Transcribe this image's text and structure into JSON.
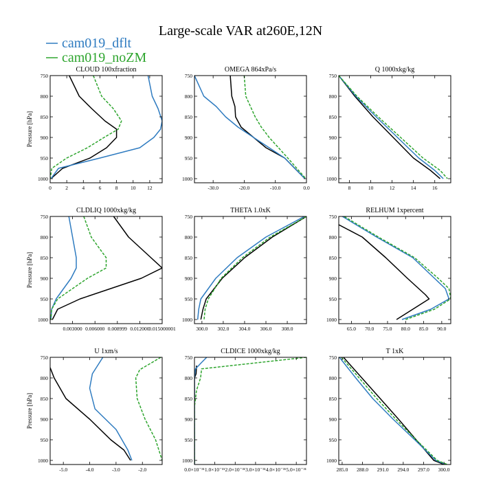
{
  "figure": {
    "title": "Large-scale VAR at260E,12N",
    "legend": [
      {
        "name": "cam019_dflt",
        "color": "#2e7bc0",
        "dash": ""
      },
      {
        "name": "cam019_noZM",
        "color": "#2ea52e",
        "dash": ""
      }
    ]
  },
  "chart_data": [
    {
      "type": "line",
      "title": "CLOUD  100xfraction",
      "ylabel": "Pressure [hPa]",
      "xlim": [
        0,
        13.5
      ],
      "ylim": [
        750,
        1010
      ],
      "y_inverted": true,
      "x_ticks": [
        0,
        2,
        4,
        6,
        8,
        10,
        12
      ],
      "x_tick_labels": [
        "0",
        "2",
        "4",
        "6",
        "8",
        "10",
        "12"
      ],
      "y_ticks": [
        750,
        800,
        850,
        900,
        950,
        1000
      ],
      "y_tick_labels": [
        "750",
        "800",
        "850",
        "900",
        "950",
        "1000"
      ],
      "series": [
        {
          "color": "#000000",
          "dash": "",
          "x": [
            2.3,
            3.5,
            5.0,
            6.6,
            8.0,
            8.0,
            6.8,
            4.8,
            1.5,
            0.1
          ],
          "y": [
            750,
            800,
            830,
            860,
            880,
            900,
            925,
            950,
            975,
            1000
          ]
        },
        {
          "color": "#2e7bc0",
          "dash": "",
          "x": [
            11.8,
            12.3,
            13.0,
            13.5,
            13.3,
            12.5,
            10.8,
            6.0,
            1.0,
            0.1
          ],
          "y": [
            750,
            800,
            830,
            860,
            880,
            900,
            925,
            950,
            975,
            1000
          ]
        },
        {
          "color": "#2ea52e",
          "dash": "4,2",
          "x": [
            5.2,
            6.2,
            7.6,
            8.6,
            8.2,
            6.5,
            4.5,
            2.0,
            0.2,
            0.0
          ],
          "y": [
            750,
            800,
            830,
            860,
            880,
            900,
            925,
            950,
            975,
            1000
          ]
        }
      ]
    },
    {
      "type": "line",
      "title": "OMEGA  864xPa/s",
      "ylabel": "",
      "xlim": [
        -36,
        0
      ],
      "ylim": [
        750,
        1010
      ],
      "y_inverted": true,
      "x_ticks": [
        -30,
        -20,
        -10,
        0
      ],
      "x_tick_labels": [
        "-30.0",
        "-20.0",
        "-10.0",
        "0.0"
      ],
      "y_ticks": [
        750,
        800,
        850,
        900,
        950,
        1000
      ],
      "y_tick_labels": [
        "750",
        "800",
        "850",
        "900",
        "950",
        "1000"
      ],
      "series": [
        {
          "color": "#000000",
          "dash": "",
          "x": [
            -24.5,
            -24,
            -23,
            -22.8,
            -21,
            -17,
            -13,
            -7,
            -0.5
          ],
          "y": [
            750,
            800,
            825,
            850,
            875,
            900,
            925,
            950,
            1000
          ]
        },
        {
          "color": "#2e7bc0",
          "dash": "",
          "x": [
            -36,
            -33,
            -29,
            -26,
            -22,
            -17,
            -12,
            -7,
            -0.5
          ],
          "y": [
            750,
            800,
            825,
            850,
            875,
            900,
            925,
            950,
            1000
          ]
        },
        {
          "color": "#2ea52e",
          "dash": "4,2",
          "x": [
            -20,
            -19.5,
            -18,
            -16.5,
            -14.5,
            -12,
            -9,
            -6,
            -0.2
          ],
          "y": [
            750,
            800,
            825,
            850,
            875,
            900,
            925,
            950,
            1000
          ]
        }
      ]
    },
    {
      "type": "line",
      "title": "Q  1000xkg/kg",
      "ylabel": "",
      "xlim": [
        7,
        17.5
      ],
      "ylim": [
        750,
        1010
      ],
      "y_inverted": true,
      "x_ticks": [
        8,
        10,
        12,
        14,
        16
      ],
      "x_tick_labels": [
        "8",
        "10",
        "12",
        "14",
        "16"
      ],
      "y_ticks": [
        750,
        800,
        850,
        900,
        950,
        1000
      ],
      "y_tick_labels": [
        "750",
        "800",
        "850",
        "900",
        "950",
        "1000"
      ],
      "series": [
        {
          "color": "#000000",
          "dash": "",
          "x": [
            7.0,
            8.5,
            10.2,
            12.1,
            14.0,
            15.6,
            16.5
          ],
          "y": [
            750,
            800,
            850,
            900,
            950,
            980,
            1000
          ]
        },
        {
          "color": "#2e7bc0",
          "dash": "",
          "x": [
            7.0,
            8.6,
            10.5,
            12.5,
            14.5,
            16.0,
            16.8
          ],
          "y": [
            750,
            800,
            850,
            900,
            950,
            980,
            1000
          ]
        },
        {
          "color": "#2ea52e",
          "dash": "4,2",
          "x": [
            7.0,
            8.7,
            10.7,
            12.8,
            14.9,
            16.5,
            17.2
          ],
          "y": [
            750,
            800,
            850,
            900,
            950,
            980,
            1000
          ]
        }
      ]
    },
    {
      "type": "line",
      "title": "CLDLIQ  1000xkg/kg",
      "ylabel": "Pressure [hPa]",
      "xlim": [
        0,
        0.015
      ],
      "ylim": [
        750,
        1010
      ],
      "y_inverted": true,
      "x_ticks": [
        0.003,
        0.006,
        0.009,
        0.012,
        0.015
      ],
      "x_tick_labels": [
        "0.003000",
        "0.006000",
        "0.008999",
        "0.012000",
        "0.015000001"
      ],
      "y_ticks": [
        750,
        800,
        850,
        900,
        950,
        1000
      ],
      "y_tick_labels": [
        "750",
        "800",
        "850",
        "900",
        "950",
        "1000"
      ],
      "series": [
        {
          "color": "#000000",
          "dash": "",
          "x": [
            0.0085,
            0.0105,
            0.0135,
            0.015,
            0.0122,
            0.004,
            0.001,
            0.0003
          ],
          "y": [
            750,
            800,
            850,
            875,
            900,
            950,
            975,
            1000
          ]
        },
        {
          "color": "#2e7bc0",
          "dash": "",
          "x": [
            0.0025,
            0.003,
            0.0035,
            0.0035,
            0.0028,
            0.0008,
            0.0002,
            0.0001
          ],
          "y": [
            750,
            800,
            850,
            875,
            900,
            950,
            975,
            1000
          ]
        },
        {
          "color": "#2ea52e",
          "dash": "4,2",
          "x": [
            0.0045,
            0.0055,
            0.0075,
            0.0075,
            0.005,
            0.001,
            0.0002,
            0.0001
          ],
          "y": [
            750,
            800,
            850,
            875,
            900,
            950,
            975,
            1000
          ]
        }
      ]
    },
    {
      "type": "line",
      "title": "THETA  1.0xK",
      "ylabel": "",
      "xlim": [
        299.3,
        309.8
      ],
      "ylim": [
        750,
        1010
      ],
      "y_inverted": true,
      "x_ticks": [
        300,
        302,
        304,
        306,
        308
      ],
      "x_tick_labels": [
        "300.0",
        "302.0",
        "304.0",
        "306.0",
        "308.0"
      ],
      "y_ticks": [
        750,
        800,
        850,
        900,
        950,
        1000
      ],
      "y_tick_labels": [
        "750",
        "800",
        "850",
        "900",
        "950",
        "1000"
      ],
      "series": [
        {
          "color": "#000000",
          "dash": "",
          "x": [
            309.8,
            306.6,
            304.0,
            301.9,
            300.4,
            300.1,
            299.9
          ],
          "y": [
            750,
            800,
            850,
            900,
            950,
            975,
            1000
          ]
        },
        {
          "color": "#2e7bc0",
          "dash": "",
          "x": [
            309.6,
            306.0,
            303.3,
            301.3,
            299.9,
            299.7,
            299.6
          ],
          "y": [
            750,
            800,
            850,
            900,
            950,
            975,
            1000
          ]
        },
        {
          "color": "#2ea52e",
          "dash": "4,2",
          "x": [
            309.8,
            306.4,
            303.8,
            301.8,
            300.6,
            300.3,
            300.2
          ],
          "y": [
            750,
            800,
            850,
            900,
            950,
            975,
            1000
          ]
        }
      ]
    },
    {
      "type": "line",
      "title": "RELHUM  1xpercent",
      "ylabel": "",
      "xlim": [
        61.5,
        92.5
      ],
      "ylim": [
        750,
        1010
      ],
      "y_inverted": true,
      "x_ticks": [
        65,
        70,
        75,
        80,
        85,
        90
      ],
      "x_tick_labels": [
        "65.0",
        "70.0",
        "75.0",
        "80.0",
        "85.0",
        "90.0"
      ],
      "y_ticks": [
        750,
        800,
        850,
        900,
        950,
        1000
      ],
      "y_tick_labels": [
        "750",
        "800",
        "850",
        "900",
        "950",
        "1000"
      ],
      "series": [
        {
          "color": "#000000",
          "dash": "",
          "x": [
            61.5,
            68,
            74.5,
            80.5,
            85.5,
            86.5,
            82,
            77.5
          ],
          "y": [
            770,
            800,
            850,
            900,
            940,
            950,
            975,
            1000
          ]
        },
        {
          "color": "#2e7bc0",
          "dash": "",
          "x": [
            62.5,
            72,
            82,
            88,
            91,
            92,
            87,
            79
          ],
          "y": [
            750,
            800,
            850,
            900,
            925,
            950,
            975,
            1000
          ]
        },
        {
          "color": "#2ea52e",
          "dash": "4,2",
          "x": [
            63,
            72.5,
            82.5,
            89,
            92,
            92.5,
            88,
            80
          ],
          "y": [
            750,
            800,
            850,
            900,
            925,
            950,
            975,
            1000
          ]
        }
      ]
    },
    {
      "type": "line",
      "title": "U  1xm/s",
      "ylabel": "Pressure [hPa]",
      "xlim": [
        -5.5,
        -1.25
      ],
      "ylim": [
        750,
        1010
      ],
      "y_inverted": true,
      "x_ticks": [
        -5,
        -4,
        -3,
        -2
      ],
      "x_tick_labels": [
        "-5.0",
        "-4.0",
        "-3.0",
        "-2.0"
      ],
      "y_ticks": [
        750,
        800,
        850,
        900,
        950,
        1000
      ],
      "y_tick_labels": [
        "750",
        "800",
        "850",
        "900",
        "950",
        "1000"
      ],
      "series": [
        {
          "color": "#000000",
          "dash": "",
          "x": [
            -5.5,
            -5.35,
            -4.9,
            -4.0,
            -3.2,
            -2.7,
            -2.45
          ],
          "y": [
            775,
            800,
            850,
            900,
            950,
            975,
            1000
          ]
        },
        {
          "color": "#2e7bc0",
          "dash": "",
          "x": [
            -3.5,
            -3.9,
            -4.0,
            -3.8,
            -3.0,
            -2.55,
            -2.4
          ],
          "y": [
            750,
            790,
            825,
            875,
            925,
            975,
            1000
          ]
        },
        {
          "color": "#2ea52e",
          "dash": "4,2",
          "x": [
            -1.3,
            -2.1,
            -2.25,
            -2.2,
            -1.9,
            -1.5,
            -1.25
          ],
          "y": [
            750,
            780,
            800,
            850,
            900,
            950,
            1000
          ]
        }
      ]
    },
    {
      "type": "line",
      "title": "CLDICE  1000xkg/kg",
      "ylabel": "",
      "xlim": [
        0,
        5.5e-31
      ],
      "ylim": [
        750,
        1010
      ],
      "y_inverted": true,
      "x_ticks": [
        0,
        1e-31,
        2e-31,
        3e-31,
        4e-31,
        5e-31
      ],
      "x_tick_labels": [
        "0.0×10⁻³¹",
        "1.0×10⁻³¹",
        "2.0×10⁻³¹",
        "3.0×10⁻³¹",
        "4.0×10⁻³¹",
        "5.0×10⁻³¹"
      ],
      "y_ticks": [
        750,
        800,
        850,
        900,
        950,
        1000
      ],
      "y_tick_labels": [
        "750",
        "800",
        "850",
        "900",
        "950",
        "1000"
      ],
      "series": [
        {
          "color": "#000000",
          "dash": "",
          "x": [
            1e-32,
            8e-33,
            0,
            0
          ],
          "y": [
            770,
            790,
            800,
            1010
          ]
        },
        {
          "color": "#2e7bc0",
          "dash": "",
          "x": [
            6e-32,
            3e-32,
            5e-33,
            0,
            0
          ],
          "y": [
            750,
            765,
            778,
            800,
            1010
          ]
        },
        {
          "color": "#2ea52e",
          "dash": "4,2",
          "x": [
            5.5e-31,
            3.5e-32,
            3e-32,
            1e-32,
            0,
            0
          ],
          "y": [
            750,
            778,
            800,
            830,
            870,
            1010
          ]
        }
      ]
    },
    {
      "type": "line",
      "title": "T  1xK",
      "ylabel": "",
      "xlim": [
        284.5,
        301
      ],
      "ylim": [
        750,
        1010
      ],
      "y_inverted": true,
      "x_ticks": [
        285,
        288,
        291,
        294,
        297,
        300
      ],
      "x_tick_labels": [
        "285.0",
        "288.0",
        "291.0",
        "294.0",
        "297.0",
        "300.0"
      ],
      "y_ticks": [
        750,
        800,
        850,
        900,
        950,
        1000
      ],
      "y_tick_labels": [
        "750",
        "800",
        "850",
        "900",
        "950",
        "1000"
      ],
      "series": [
        {
          "color": "#000000",
          "dash": "",
          "x": [
            285.2,
            287.9,
            290.6,
            293.3,
            295.9,
            298.5,
            300.0
          ],
          "y": [
            750,
            800,
            850,
            900,
            950,
            1000,
            1010
          ]
        },
        {
          "color": "#2e7bc0",
          "dash": "",
          "x": [
            284.6,
            287.0,
            289.5,
            292.5,
            295.7,
            298.8,
            300.3
          ],
          "y": [
            750,
            800,
            850,
            900,
            950,
            1000,
            1010
          ]
        },
        {
          "color": "#2ea52e",
          "dash": "4,2",
          "x": [
            284.9,
            287.5,
            290.1,
            292.9,
            295.9,
            299.0,
            300.5
          ],
          "y": [
            750,
            800,
            850,
            900,
            950,
            1000,
            1010
          ]
        }
      ]
    }
  ]
}
